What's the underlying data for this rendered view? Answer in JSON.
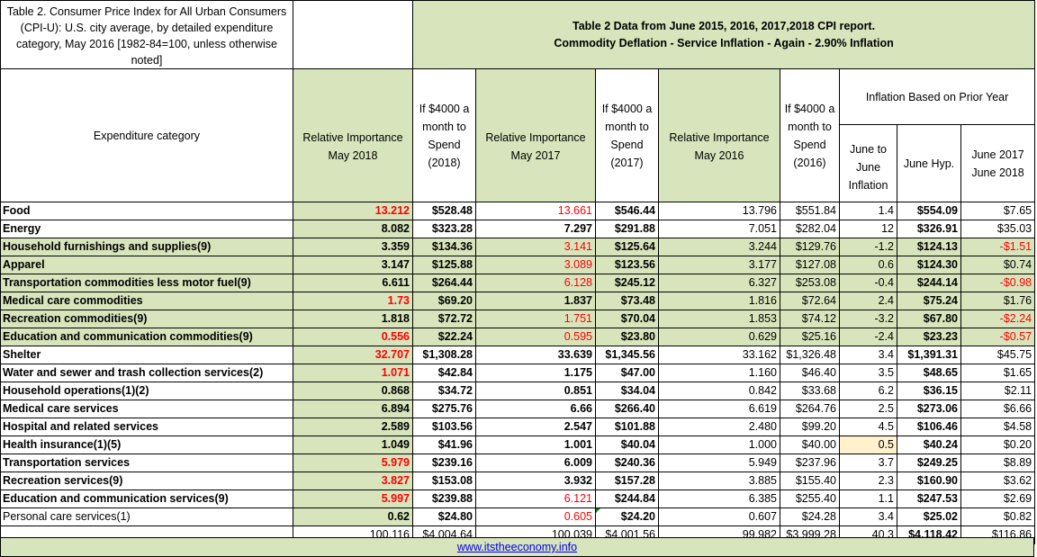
{
  "title_block": "Table 2. Consumer Price Index for All Urban Consumers (CPI-U): U.S. city average, by detailed expenditure category, May 2016 [1982-84=100, unless otherwise noted]",
  "main_title_line1": "Table 2 Data from June 2015, 2016, 2017,2018 CPI report.",
  "main_title_line2": "Commodity Deflation - Service Inflation - Again - 2.90% Inflation",
  "headers": {
    "category": "Expenditure category",
    "ri2018": "Relative Importance May 2018",
    "spend2018": "If $4000 a month to Spend (2018)",
    "ri2017": "Relative Importance May 2017",
    "spend2017": "If $4000 a month to Spend (2017)",
    "ri2016": "Relative Importance May 2016",
    "spend2016": "If $4000 a month to Spend (2016)",
    "inflation_group": "Inflation Based on Prior Year",
    "june_to_june": "June to June Inflation",
    "june_hyp": "June Hyp.",
    "june_2017_2018": "June 2017 June 2018"
  },
  "rows": [
    {
      "category": "Food",
      "ri2018": "13.212",
      "spend2018": "$528.48",
      "ri2017": "13.661",
      "spend2017": "$546.44",
      "ri2016": "13.796",
      "spend2016": "$551.84",
      "jtj": "1.4",
      "hyp": "$554.09",
      "diff": "$7.65",
      "bold": true,
      "red18": true,
      "red17": true,
      "bg": "w",
      "reddiff": false
    },
    {
      "category": "Energy",
      "ri2018": "8.082",
      "spend2018": "$323.28",
      "ri2017": "7.297",
      "spend2017": "$291.88",
      "ri2016": "7.051",
      "spend2016": "$282.04",
      "jtj": "12",
      "hyp": "$326.91",
      "diff": "$35.03",
      "bold": true,
      "red18": false,
      "red17": false,
      "bg": "w",
      "reddiff": false
    },
    {
      "category": "Household furnishings and supplies(9)",
      "ri2018": "3.359",
      "spend2018": "$134.36",
      "ri2017": "3.141",
      "spend2017": "$125.64",
      "ri2016": "3.244",
      "spend2016": "$129.76",
      "jtj": "-1.2",
      "hyp": "$124.13",
      "diff": "-$1.51",
      "bold": true,
      "red18": false,
      "red17": true,
      "bg": "g",
      "reddiff": true
    },
    {
      "category": "Apparel",
      "ri2018": "3.147",
      "spend2018": "$125.88",
      "ri2017": "3.089",
      "spend2017": "$123.56",
      "ri2016": "3.177",
      "spend2016": "$127.08",
      "jtj": "0.6",
      "hyp": "$124.30",
      "diff": "$0.74",
      "bold": true,
      "red18": false,
      "red17": true,
      "bg": "g",
      "reddiff": false
    },
    {
      "category": "Transportation commodities less motor fuel(9)",
      "ri2018": "6.611",
      "spend2018": "$264.44",
      "ri2017": "6.128",
      "spend2017": "$245.12",
      "ri2016": "6.327",
      "spend2016": "$253.08",
      "jtj": "-0.4",
      "hyp": "$244.14",
      "diff": "-$0.98",
      "bold": true,
      "red18": false,
      "red17": true,
      "bg": "g",
      "reddiff": true
    },
    {
      "category": "Medical care commodities",
      "ri2018": "1.73",
      "spend2018": "$69.20",
      "ri2017": "1.837",
      "spend2017": "$73.48",
      "ri2016": "1.816",
      "spend2016": "$72.64",
      "jtj": "2.4",
      "hyp": "$75.24",
      "diff": "$1.76",
      "bold": true,
      "red18": true,
      "red17": false,
      "bg": "g",
      "reddiff": false
    },
    {
      "category": "Recreation commodities(9)",
      "ri2018": "1.818",
      "spend2018": "$72.72",
      "ri2017": "1.751",
      "spend2017": "$70.04",
      "ri2016": "1.853",
      "spend2016": "$74.12",
      "jtj": "-3.2",
      "hyp": "$67.80",
      "diff": "-$2.24",
      "bold": true,
      "red18": false,
      "red17": true,
      "bg": "g",
      "reddiff": true
    },
    {
      "category": "Education and communication commodities(9)",
      "ri2018": "0.556",
      "spend2018": "$22.24",
      "ri2017": "0.595",
      "spend2017": "$23.80",
      "ri2016": "0.629",
      "spend2016": "$25.16",
      "jtj": "-2.4",
      "hyp": "$23.23",
      "diff": "-$0.57",
      "bold": true,
      "red18": true,
      "red17": true,
      "bg": "g",
      "reddiff": true
    },
    {
      "category": "Shelter",
      "ri2018": "32.707",
      "spend2018": "$1,308.28",
      "ri2017": "33.639",
      "spend2017": "$1,345.56",
      "ri2016": "33.162",
      "spend2016": "$1,326.48",
      "jtj": "3.4",
      "hyp": "$1,391.31",
      "diff": "$45.75",
      "bold": true,
      "red18": true,
      "red17": false,
      "bg": "w",
      "reddiff": false
    },
    {
      "category": "Water and sewer and trash collection services(2)",
      "ri2018": "1.071",
      "spend2018": "$42.84",
      "ri2017": "1.175",
      "spend2017": "$47.00",
      "ri2016": "1.160",
      "spend2016": "$46.40",
      "jtj": "3.5",
      "hyp": "$48.65",
      "diff": "$1.65",
      "bold": true,
      "red18": true,
      "red17": false,
      "bg": "w",
      "reddiff": false
    },
    {
      "category": "Household operations(1)(2)",
      "ri2018": "0.868",
      "spend2018": "$34.72",
      "ri2017": "0.851",
      "spend2017": "$34.04",
      "ri2016": "0.842",
      "spend2016": "$33.68",
      "jtj": "6.2",
      "hyp": "$36.15",
      "diff": "$2.11",
      "bold": true,
      "red18": false,
      "red17": false,
      "bg": "w",
      "reddiff": false
    },
    {
      "category": "Medical care services",
      "ri2018": "6.894",
      "spend2018": "$275.76",
      "ri2017": "6.66",
      "spend2017": "$266.40",
      "ri2016": "6.619",
      "spend2016": "$264.76",
      "jtj": "2.5",
      "hyp": "$273.06",
      "diff": "$6.66",
      "bold": true,
      "red18": false,
      "red17": false,
      "bg": "w",
      "reddiff": false
    },
    {
      "category": "Hospital and related services",
      "ri2018": "2.589",
      "spend2018": "$103.56",
      "ri2017": "2.547",
      "spend2017": "$101.88",
      "ri2016": "2.480",
      "spend2016": "$99.20",
      "jtj": "4.5",
      "hyp": "$106.46",
      "diff": "$4.58",
      "bold": true,
      "red18": false,
      "red17": false,
      "bg": "w",
      "reddiff": false
    },
    {
      "category": "Health insurance(1)(5)",
      "ri2018": "1.049",
      "spend2018": "$41.96",
      "ri2017": "1.001",
      "spend2017": "$40.04",
      "ri2016": "1.000",
      "spend2016": "$40.00",
      "jtj": "0.5",
      "hyp": "$40.24",
      "diff": "$0.20",
      "bold": true,
      "red18": false,
      "red17": false,
      "bg": "w",
      "reddiff": false,
      "yellow": true
    },
    {
      "category": "Transportation services",
      "ri2018": "5.979",
      "spend2018": "$239.16",
      "ri2017": "6.009",
      "spend2017": "$240.36",
      "ri2016": "5.949",
      "spend2016": "$237.96",
      "jtj": "3.7",
      "hyp": "$249.25",
      "diff": "$8.89",
      "bold": true,
      "red18": true,
      "red17": false,
      "bg": "w",
      "reddiff": false
    },
    {
      "category": "Recreation services(9)",
      "ri2018": "3.827",
      "spend2018": "$153.08",
      "ri2017": "3.932",
      "spend2017": "$157.28",
      "ri2016": "3.885",
      "spend2016": "$155.40",
      "jtj": "2.3",
      "hyp": "$160.90",
      "diff": "$3.62",
      "bold": true,
      "red18": true,
      "red17": false,
      "bg": "w",
      "reddiff": false
    },
    {
      "category": "Education and communication services(9)",
      "ri2018": "5.997",
      "spend2018": "$239.88",
      "ri2017": "6.121",
      "spend2017": "$244.84",
      "ri2016": "6.385",
      "spend2016": "$255.40",
      "jtj": "1.1",
      "hyp": "$247.53",
      "diff": "$2.69",
      "bold": true,
      "red18": true,
      "red17": true,
      "bg": "w",
      "reddiff": false
    },
    {
      "category": "Personal care services(1)",
      "ri2018": "0.62",
      "spend2018": "$24.80",
      "ri2017": "0.605",
      "spend2017": "$24.20",
      "ri2016": "0.607",
      "spend2016": "$24.28",
      "jtj": "3.4",
      "hyp": "$25.02",
      "diff": "$0.82",
      "bold": false,
      "red18": false,
      "red17": true,
      "bg": "w",
      "reddiff": false,
      "comment": true
    }
  ],
  "totals": {
    "ri2018": "100.116",
    "spend2018": "$4,004.64",
    "ri2017": "100.039",
    "spend2017": "$4,001.56",
    "ri2016": "99.982",
    "spend2016": "$3,999.28",
    "jtj": "40.3",
    "hyp": "$4,118.42",
    "diff": "$116.86"
  },
  "footer_link": "www.itstheeconomy.info",
  "colors": {
    "green": "#d8e4bc",
    "red": "#ff0000",
    "link": "#0000ee",
    "highlight": "#fff2cc"
  }
}
